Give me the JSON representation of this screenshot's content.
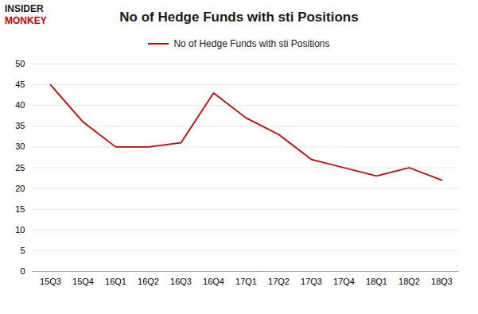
{
  "chart_data": {
    "type": "line",
    "title": "No of Hedge Funds with sti Positions",
    "categories": [
      "15Q3",
      "15Q4",
      "16Q1",
      "16Q2",
      "16Q3",
      "16Q4",
      "17Q1",
      "17Q2",
      "17Q3",
      "17Q4",
      "18Q1",
      "18Q2",
      "18Q3"
    ],
    "series": [
      {
        "name": "No of Hedge Funds with sti Positions",
        "color": "#cc0000",
        "values": [
          45,
          36,
          30,
          30,
          31,
          43,
          37,
          33,
          27,
          25,
          23,
          25,
          22
        ]
      }
    ],
    "ylim": [
      0,
      50
    ],
    "yticks": [
      0,
      5,
      10,
      15,
      20,
      25,
      30,
      35,
      40,
      45,
      50
    ],
    "grid": "y",
    "legend": "top",
    "annotations": [
      {
        "text": "INSIDER",
        "color": "#1a1a1a"
      },
      {
        "text": "MONKEY",
        "color": "#cc0000"
      }
    ]
  }
}
